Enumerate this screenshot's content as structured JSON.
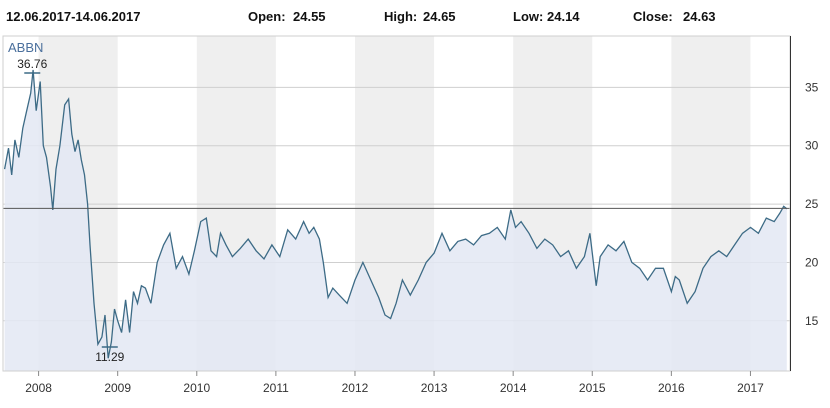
{
  "header": {
    "date_range": "12.06.2017-14.06.2017",
    "open_label": "Open:",
    "open_value": "24.55",
    "high_label": "High:",
    "high_value": "24.65",
    "low_label": "Low:",
    "low_value": "24.14",
    "close_label": "Close:",
    "close_value": "24.63"
  },
  "chart_data": {
    "type": "area",
    "symbol": "ABBN",
    "x_tick_labels": [
      "2008",
      "2009",
      "2010",
      "2011",
      "2012",
      "2013",
      "2014",
      "2015",
      "2016",
      "2017"
    ],
    "y_ticks": [
      15,
      20,
      25,
      30,
      35
    ],
    "y_tick_labels": [
      "15",
      "20",
      "25",
      "30",
      "35"
    ],
    "xlim": [
      2007.55,
      2017.5
    ],
    "ylim": [
      10.7,
      39.4
    ],
    "grid": true,
    "current_value": 24.63,
    "annotations": [
      {
        "label": "36.76",
        "x": 2007.92,
        "y": 36.76,
        "kind": "max"
      },
      {
        "label": "11.29",
        "x": 2008.9,
        "y": 11.29,
        "kind": "min"
      }
    ],
    "colors": {
      "line": "#3d6b86",
      "fill": "#e3e8f3",
      "band": "#efefef"
    },
    "series": [
      {
        "x": [
          2007.57,
          2007.62,
          2007.66,
          2007.7,
          2007.75,
          2007.8,
          2007.85,
          2007.9,
          2007.93,
          2007.97,
          2008.02,
          2008.06,
          2008.1,
          2008.15,
          2008.18,
          2008.22,
          2008.27,
          2008.33,
          2008.38,
          2008.42,
          2008.46,
          2008.5,
          2008.54,
          2008.58,
          2008.62,
          2008.65,
          2008.7,
          2008.75,
          2008.8,
          2008.84,
          2008.88,
          2008.92,
          2008.96,
          2009.0,
          2009.05,
          2009.1,
          2009.15,
          2009.2,
          2009.25,
          2009.3,
          2009.35,
          2009.42,
          2009.5,
          2009.58,
          2009.66,
          2009.74,
          2009.82,
          2009.9,
          2009.97,
          2010.05,
          2010.12,
          2010.18,
          2010.25,
          2010.3,
          2010.37,
          2010.45,
          2010.55,
          2010.65,
          2010.75,
          2010.85,
          2010.95,
          2011.05,
          2011.15,
          2011.25,
          2011.35,
          2011.42,
          2011.48,
          2011.55,
          2011.6,
          2011.66,
          2011.72,
          2011.8,
          2011.9,
          2012.0,
          2012.1,
          2012.2,
          2012.3,
          2012.38,
          2012.45,
          2012.52,
          2012.6,
          2012.7,
          2012.8,
          2012.9,
          2013.0,
          2013.1,
          2013.2,
          2013.3,
          2013.4,
          2013.5,
          2013.6,
          2013.7,
          2013.8,
          2013.9,
          2013.97,
          2014.03,
          2014.1,
          2014.2,
          2014.3,
          2014.4,
          2014.5,
          2014.6,
          2014.7,
          2014.8,
          2014.9,
          2014.97,
          2015.05,
          2015.1,
          2015.2,
          2015.3,
          2015.4,
          2015.5,
          2015.6,
          2015.7,
          2015.8,
          2015.9,
          2016.0,
          2016.05,
          2016.1,
          2016.2,
          2016.3,
          2016.4,
          2016.5,
          2016.6,
          2016.7,
          2016.8,
          2016.9,
          2017.0,
          2017.1,
          2017.2,
          2017.3,
          2017.37,
          2017.42,
          2017.46
        ],
        "y": [
          28,
          29.8,
          27.5,
          30.5,
          29,
          31.5,
          33,
          34.5,
          36.5,
          33,
          35.5,
          30,
          29,
          26.5,
          24.5,
          28,
          30,
          33.5,
          34,
          31,
          29.5,
          30.5,
          28.8,
          27.5,
          25,
          21.5,
          16.5,
          13,
          13.6,
          15.5,
          11.8,
          13.2,
          16,
          15,
          14,
          16.8,
          14,
          17.5,
          16.5,
          18,
          17.8,
          16.5,
          20,
          21.5,
          22.5,
          19.5,
          20.5,
          19,
          21,
          23.5,
          23.8,
          21,
          20.5,
          22.5,
          21.5,
          20.5,
          21.2,
          22,
          21,
          20.3,
          21.5,
          20.5,
          22.8,
          22,
          23.5,
          22.5,
          23,
          22,
          20,
          17,
          17.8,
          17.2,
          16.5,
          18.5,
          20,
          18.5,
          17,
          15.5,
          15.2,
          16.5,
          18.5,
          17.2,
          18.5,
          20,
          20.8,
          22.5,
          21,
          21.8,
          22,
          21.5,
          22.3,
          22.5,
          23,
          22,
          24.5,
          23,
          23.5,
          22.5,
          21.2,
          22,
          21.5,
          20.5,
          21,
          19.5,
          20.5,
          22.5,
          18,
          20.5,
          21.5,
          21,
          21.8,
          20,
          19.5,
          18.5,
          19.5,
          19.5,
          17.5,
          18.8,
          18.5,
          16.5,
          17.5,
          19.5,
          20.5,
          21,
          20.5,
          21.5,
          22.5,
          23,
          22.5,
          23.8,
          23.5,
          24.2,
          24.8,
          24.6
        ]
      }
    ]
  }
}
